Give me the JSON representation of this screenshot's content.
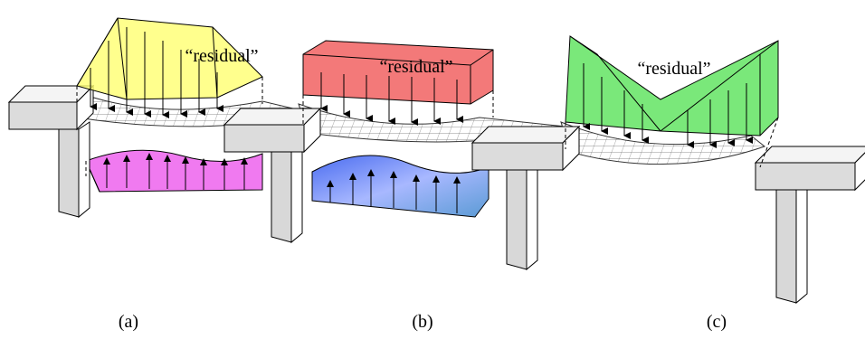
{
  "panels": [
    {
      "label": "(a)",
      "annotation": "“residual”"
    },
    {
      "label": "(b)",
      "annotation": "“residual”"
    },
    {
      "label": "(c)",
      "annotation": "“residual”"
    }
  ]
}
